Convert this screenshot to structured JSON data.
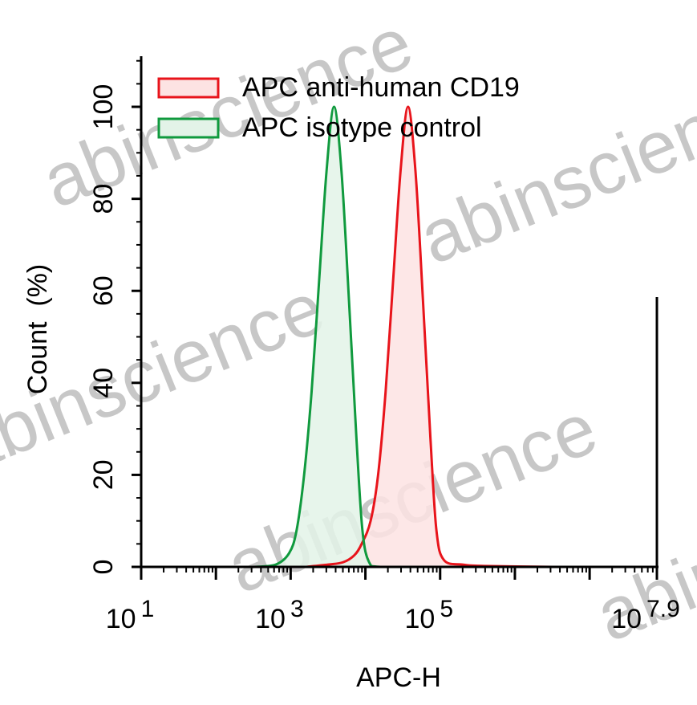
{
  "chart_data": {
    "type": "area",
    "title": "",
    "xlabel": "APC-H",
    "ylabel": "Count  (%)",
    "x_scale": "log",
    "xlim": [
      10,
      79432823
    ],
    "ylim": [
      0,
      111
    ],
    "x_ticks": [
      {
        "base": "10",
        "exp": "1",
        "value": 10
      },
      {
        "base": "10",
        "exp": "3",
        "value": 1000
      },
      {
        "base": "10",
        "exp": "5",
        "value": 100000
      },
      {
        "base": "10",
        "exp": "7.9",
        "value": 79432823
      }
    ],
    "y_ticks": [
      "0",
      "20",
      "40",
      "60",
      "80",
      "100"
    ],
    "grid": false,
    "legend": "top-left",
    "series": [
      {
        "name": "APC anti-human CD19",
        "color": "#e8141b",
        "fill": "#fde3e3",
        "x": [
          1585,
          3162,
          5012,
          7079,
          8913,
          11749,
          14791,
          18621,
          23442,
          29512,
          37154,
          46774,
          58884,
          74131,
          89125,
          112202,
          199526,
          398107,
          3162278
        ],
        "y": [
          0,
          0.5,
          1,
          2.5,
          5,
          10,
          20,
          38,
          62,
          86,
          100,
          86,
          58,
          28,
          8,
          1.5,
          0.5,
          0.2,
          0
        ]
      },
      {
        "name": "APC isotype control",
        "color": "#109a3e",
        "fill": "#e3f3e8",
        "x": [
          316,
          631,
          955,
          1202,
          1514,
          1905,
          2399,
          3020,
          3802,
          4786,
          6026,
          7586,
          9120,
          11220,
          15849,
          100000
        ],
        "y": [
          0,
          0.5,
          3,
          8,
          20,
          38,
          62,
          86,
          100,
          86,
          58,
          28,
          8,
          1,
          0,
          0
        ]
      }
    ]
  },
  "watermark": "abinscience"
}
